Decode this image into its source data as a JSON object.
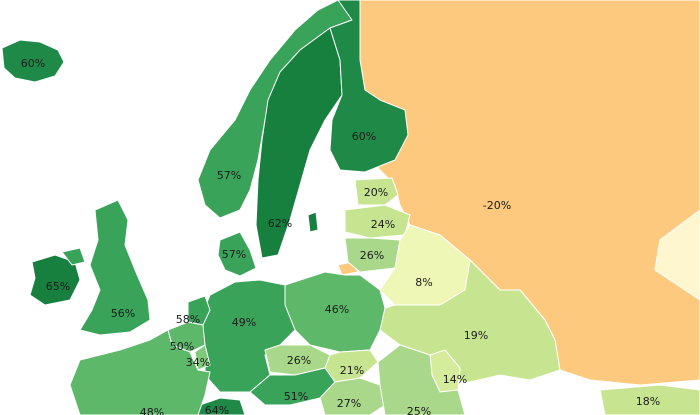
{
  "map": {
    "colors": {
      "sea": "#ffffff",
      "negative": "#fdc97f",
      "very_low": "#eef7b5",
      "low": "#d6ec9d",
      "mid_low": "#c7e590",
      "mid": "#a9d88a",
      "mid_high": "#7fc97b",
      "high": "#5db86a",
      "very_high": "#3aa35a",
      "highest": "#1f8a48",
      "top": "#17803f"
    },
    "labels": {
      "iceland": "60%",
      "norway": "57%",
      "sweden": "62%",
      "finland": "60%",
      "russia": "-20%",
      "estonia": "20%",
      "latvia": "24%",
      "lithuania": "26%",
      "belarus": "8%",
      "ukraine": "19%",
      "denmark": "57%",
      "ireland": "65%",
      "uk": "56%",
      "netherlands": "58%",
      "belgium": "50%",
      "luxembourg": "34%",
      "germany": "49%",
      "poland": "46%",
      "czechia": "26%",
      "slovakia": "21%",
      "austria": "51%",
      "hungary": "27%",
      "moldova": "14%",
      "romania": "25%",
      "france": "48%",
      "switzerland": "64%",
      "georgia": "18%"
    }
  }
}
